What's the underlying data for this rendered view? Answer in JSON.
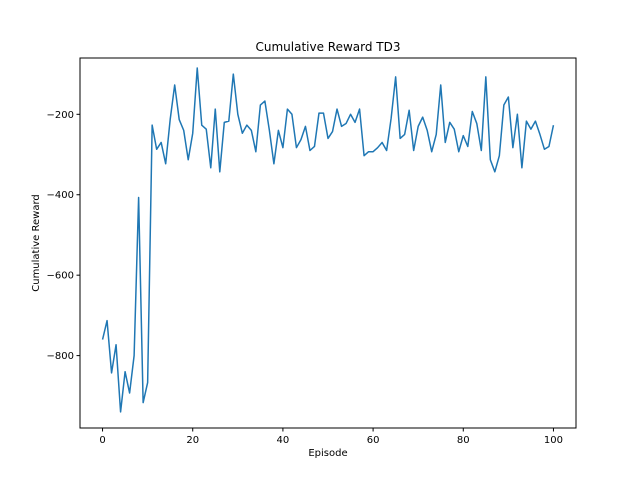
{
  "chart_data": {
    "type": "line",
    "title": "Cumulative Reward TD3",
    "xlabel": "Episode",
    "ylabel": "Cumulative Reward",
    "xlim": [
      -5,
      105
    ],
    "ylim": [
      -980,
      -60
    ],
    "xticks": [
      0,
      20,
      40,
      60,
      80,
      100
    ],
    "yticks": [
      -800,
      -600,
      -400,
      -200
    ],
    "grid": false,
    "colors": {
      "line": "#1f77b4"
    },
    "series": [
      {
        "values": [
          -760,
          -713,
          -843,
          -773,
          -940,
          -840,
          -893,
          -800,
          -407,
          -917,
          -867,
          -227,
          -287,
          -270,
          -323,
          -213,
          -127,
          -213,
          -240,
          -313,
          -247,
          -85,
          -227,
          -237,
          -333,
          -187,
          -343,
          -220,
          -217,
          -100,
          -200,
          -247,
          -227,
          -240,
          -293,
          -177,
          -167,
          -240,
          -323,
          -240,
          -283,
          -187,
          -200,
          -283,
          -263,
          -230,
          -290,
          -280,
          -197,
          -197,
          -260,
          -243,
          -187,
          -230,
          -223,
          -200,
          -220,
          -187,
          -303,
          -293,
          -293,
          -283,
          -270,
          -290,
          -210,
          -107,
          -260,
          -250,
          -190,
          -290,
          -230,
          -207,
          -240,
          -293,
          -250,
          -127,
          -270,
          -220,
          -237,
          -293,
          -253,
          -280,
          -193,
          -223,
          -290,
          -107,
          -313,
          -343,
          -303,
          -177,
          -157,
          -283,
          -200,
          -333,
          -217,
          -237,
          -217,
          -250,
          -287,
          -280,
          -227
        ]
      }
    ]
  }
}
